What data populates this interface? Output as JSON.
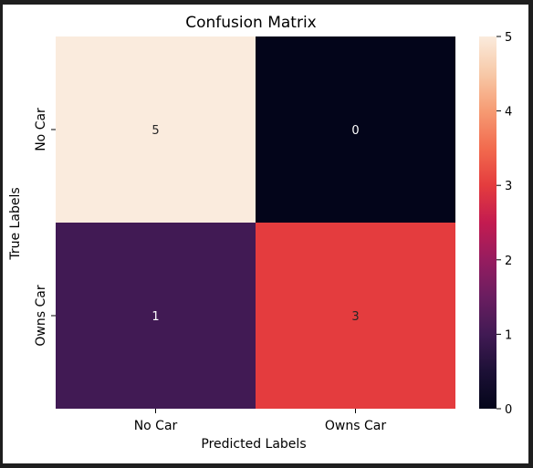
{
  "chart_data": {
    "type": "heatmap",
    "title": "Confusion Matrix",
    "xlabel": "Predicted Labels",
    "ylabel": "True Labels",
    "x_categories": [
      "No Car",
      "Owns Car"
    ],
    "y_categories": [
      "No Car",
      "Owns Car"
    ],
    "values": [
      [
        5,
        0
      ],
      [
        1,
        3
      ]
    ],
    "annotations": true,
    "colormap": "rocket",
    "colorbar": {
      "min": 0,
      "max": 5,
      "ticks": [
        "0",
        "1",
        "2",
        "3",
        "4",
        "5"
      ]
    }
  },
  "colors": {
    "background": "#1e1e1e",
    "figure": "#ffffff",
    "low": "#03051a",
    "high": "#faebdd"
  }
}
